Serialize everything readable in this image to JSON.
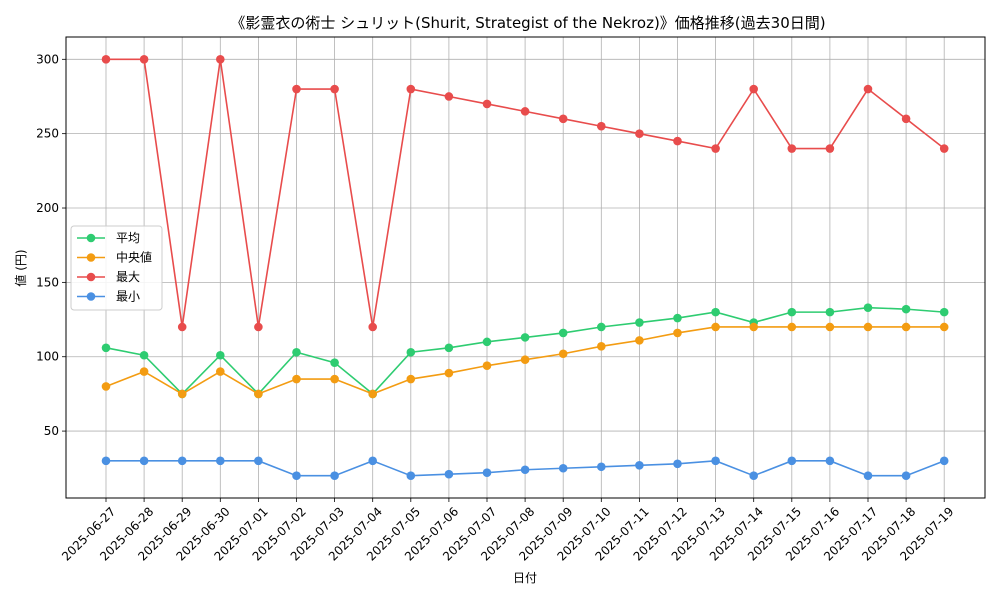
{
  "chart_data": {
    "type": "line",
    "title": "《影霊衣の術士 シュリット(Shurit, Strategist of the Nekroz)》価格推移(過去30日間)",
    "xlabel": "日付",
    "ylabel": "値 (円)",
    "ylim": [
      5,
      315
    ],
    "yticks": [
      50,
      100,
      150,
      200,
      250,
      300
    ],
    "grid": true,
    "legend_position": "center-left",
    "categories": [
      "2025-06-27",
      "2025-06-28",
      "2025-06-29",
      "2025-06-30",
      "2025-07-01",
      "2025-07-02",
      "2025-07-03",
      "2025-07-04",
      "2025-07-05",
      "2025-07-06",
      "2025-07-07",
      "2025-07-08",
      "2025-07-09",
      "2025-07-10",
      "2025-07-11",
      "2025-07-12",
      "2025-07-13",
      "2025-07-14",
      "2025-07-15",
      "2025-07-16",
      "2025-07-17",
      "2025-07-18",
      "2025-07-19"
    ],
    "series": [
      {
        "name": "平均",
        "color": "#2ecc71",
        "values": [
          106,
          101,
          75,
          101,
          75,
          103,
          96,
          75,
          103,
          106,
          110,
          113,
          116,
          120,
          123,
          126,
          130,
          123,
          130,
          130,
          133,
          132,
          130
        ]
      },
      {
        "name": "中央値",
        "color": "#f39c12",
        "values": [
          80,
          90,
          75,
          90,
          75,
          85,
          85,
          75,
          85,
          89,
          94,
          98,
          102,
          107,
          111,
          116,
          120,
          120,
          120,
          120,
          120,
          120,
          120
        ]
      },
      {
        "name": "最大",
        "color": "#e84c4c",
        "values": [
          300,
          300,
          120,
          300,
          120,
          280,
          280,
          120,
          280,
          275,
          270,
          265,
          260,
          255,
          250,
          245,
          240,
          280,
          240,
          240,
          280,
          260,
          240
        ]
      },
      {
        "name": "最小",
        "color": "#4a90e2",
        "values": [
          30,
          30,
          30,
          30,
          30,
          20,
          20,
          30,
          20,
          21,
          22,
          24,
          25,
          26,
          27,
          28,
          30,
          20,
          30,
          30,
          20,
          20,
          30
        ]
      }
    ]
  }
}
